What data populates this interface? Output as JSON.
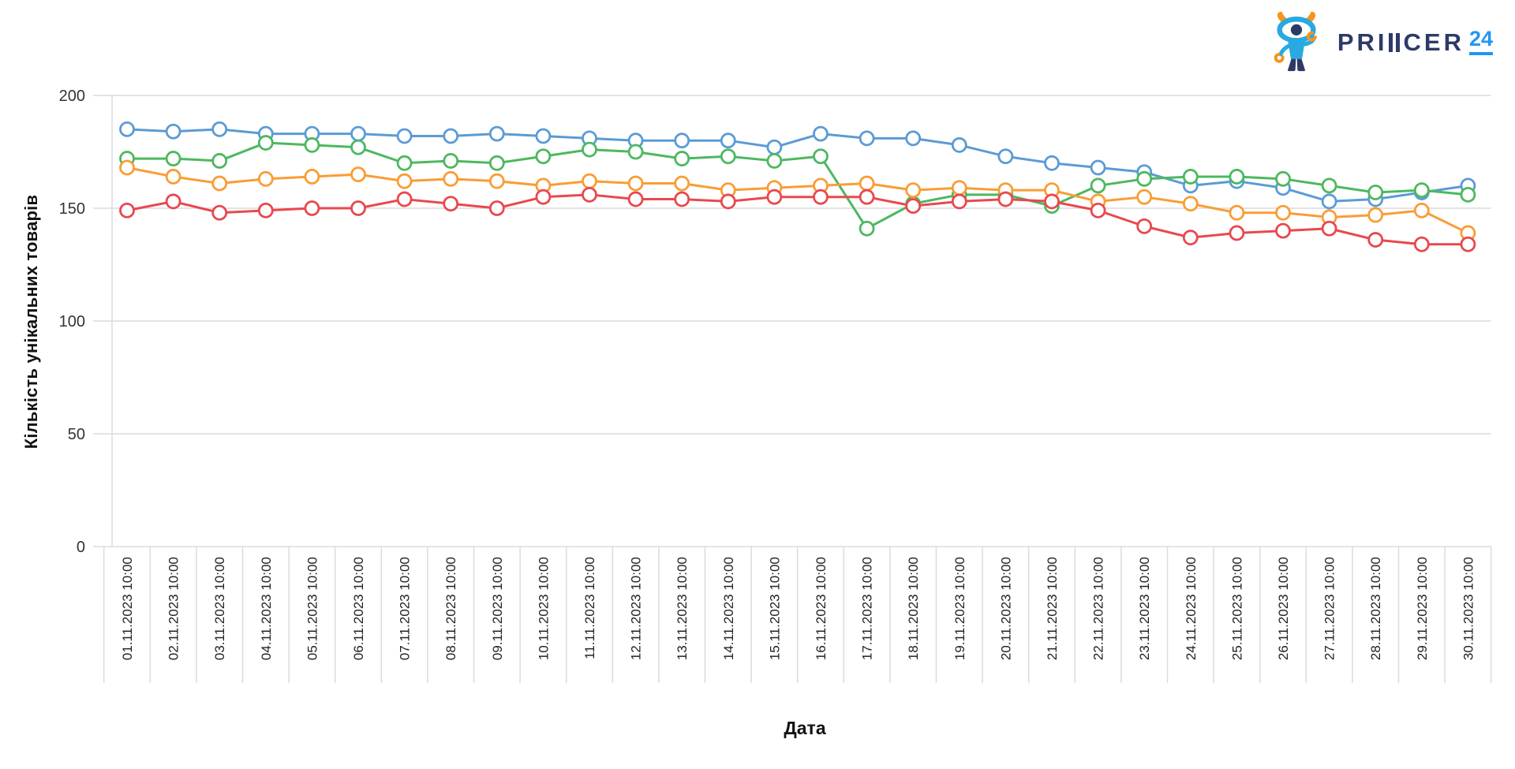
{
  "page": {
    "background": "#ffffff"
  },
  "logo": {
    "brand_left": "PRI",
    "brand_right": "CER",
    "suffix": "24",
    "brand_color": "#2e3a67",
    "accent_color": "#2196f3",
    "mascot_blue": "#29a9e1",
    "mascot_navy": "#2e3a66",
    "mascot_orange": "#f7941d"
  },
  "chart_data": {
    "type": "line",
    "title": "",
    "xlabel": "Дата",
    "ylabel": "Кількість унікальних товарів",
    "ylim": [
      0,
      200
    ],
    "yticks": [
      0,
      50,
      100,
      150,
      200
    ],
    "grid": "horizontal",
    "legend": "none",
    "marker": "open-circle",
    "categories": [
      "01.11.2023 10:00",
      "02.11.2023 10:00",
      "03.11.2023 10:00",
      "04.11.2023 10:00",
      "05.11.2023 10:00",
      "06.11.2023 10:00",
      "07.11.2023 10:00",
      "08.11.2023 10:00",
      "09.11.2023 10:00",
      "10.11.2023 10:00",
      "11.11.2023 10:00",
      "12.11.2023 10:00",
      "13.11.2023 10:00",
      "14.11.2023 10:00",
      "15.11.2023 10:00",
      "16.11.2023 10:00",
      "17.11.2023 10:00",
      "18.11.2023 10:00",
      "19.11.2023 10:00",
      "20.11.2023 10:00",
      "21.11.2023 10:00",
      "22.11.2023 10:00",
      "23.11.2023 10:00",
      "24.11.2023 10:00",
      "25.11.2023 10:00",
      "26.11.2023 10:00",
      "27.11.2023 10:00",
      "28.11.2023 10:00",
      "29.11.2023 10:00",
      "30.11.2023 10:00"
    ],
    "series": [
      {
        "name": "blue",
        "color": "#5b9bd5",
        "values": [
          185,
          184,
          185,
          183,
          183,
          183,
          182,
          182,
          183,
          182,
          181,
          180,
          180,
          180,
          177,
          183,
          181,
          181,
          178,
          173,
          170,
          168,
          166,
          160,
          162,
          159,
          153,
          154,
          157,
          160
        ]
      },
      {
        "name": "green",
        "color": "#4db85f",
        "values": [
          172,
          172,
          171,
          179,
          178,
          177,
          170,
          171,
          170,
          173,
          176,
          175,
          172,
          173,
          171,
          173,
          141,
          152,
          156,
          156,
          151,
          160,
          163,
          164,
          164,
          163,
          160,
          157,
          158,
          156
        ]
      },
      {
        "name": "orange",
        "color": "#f99d35",
        "values": [
          168,
          164,
          161,
          163,
          164,
          165,
          162,
          163,
          162,
          160,
          162,
          161,
          161,
          158,
          159,
          160,
          161,
          158,
          159,
          158,
          158,
          153,
          155,
          152,
          148,
          148,
          146,
          147,
          149,
          139
        ]
      },
      {
        "name": "red",
        "color": "#e8484f",
        "values": [
          149,
          153,
          148,
          149,
          150,
          150,
          154,
          152,
          150,
          155,
          156,
          154,
          154,
          153,
          155,
          155,
          155,
          151,
          153,
          154,
          153,
          149,
          142,
          137,
          139,
          140,
          141,
          136,
          134,
          134
        ]
      }
    ]
  }
}
